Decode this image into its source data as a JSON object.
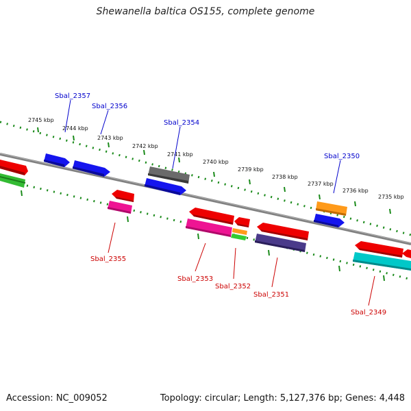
{
  "title": "Shewanella baltica OS155, complete genome",
  "accession_text": "Accession: NC_009052",
  "topology_text": "Topology: circular; Length: 5,127,376 bp; Genes: 4,448",
  "scale_ticks": [
    "2745 kbp",
    "2744 kbp",
    "2743 kbp",
    "2742 kbp",
    "2741 kbp",
    "2740 kbp",
    "2739 kbp",
    "2738 kbp",
    "2737 kbp",
    "2736 kbp",
    "2735 kbp"
  ],
  "upper_gene_labels": [
    "Sbal_2357",
    "Sbal_2356",
    "Sbal_2354",
    "Sbal_2350"
  ],
  "lower_gene_labels": [
    "Sbal_2355",
    "Sbal_2353",
    "Sbal_2352",
    "Sbal_2351",
    "Sbal_2349"
  ],
  "colors": {
    "backbone": "#808080",
    "scale_dots": "#1a8a1a",
    "upper_label": "#0000cc",
    "lower_label": "#cc0000",
    "red": "#ee0000",
    "blue": "#1515ee",
    "grey": "#6a6a6a",
    "orange": "#ff9a1a",
    "magenta": "#ee1493",
    "green": "#33cc33",
    "cyan": "#00c8c8",
    "purple": "#4a3a8a"
  }
}
